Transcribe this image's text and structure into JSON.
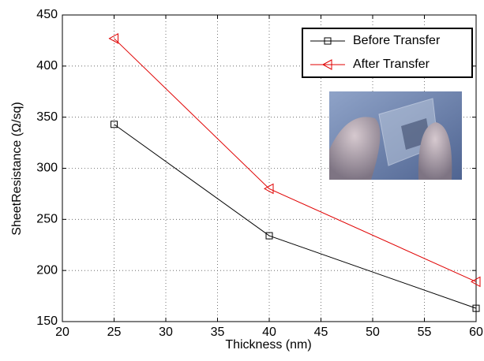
{
  "chart_data": {
    "type": "line",
    "x_label": "Thickness (nm)",
    "y_label": "SheetResistance (Ω/sq)",
    "x": [
      25,
      40,
      60
    ],
    "series": [
      {
        "name": "Before Transfer",
        "color": "#000000",
        "marker": "square",
        "values": [
          343,
          234,
          163
        ]
      },
      {
        "name": "After Transfer",
        "color": "#e00000",
        "marker": "triangle-left",
        "values": [
          427,
          280,
          189
        ]
      }
    ],
    "xlim": [
      20,
      60
    ],
    "xticks": [
      20,
      25,
      30,
      35,
      40,
      45,
      50,
      55,
      60
    ],
    "ylim": [
      150,
      450
    ],
    "yticks": [
      150,
      200,
      250,
      300,
      350,
      400,
      450
    ],
    "grid": true,
    "legend": "upper right"
  }
}
